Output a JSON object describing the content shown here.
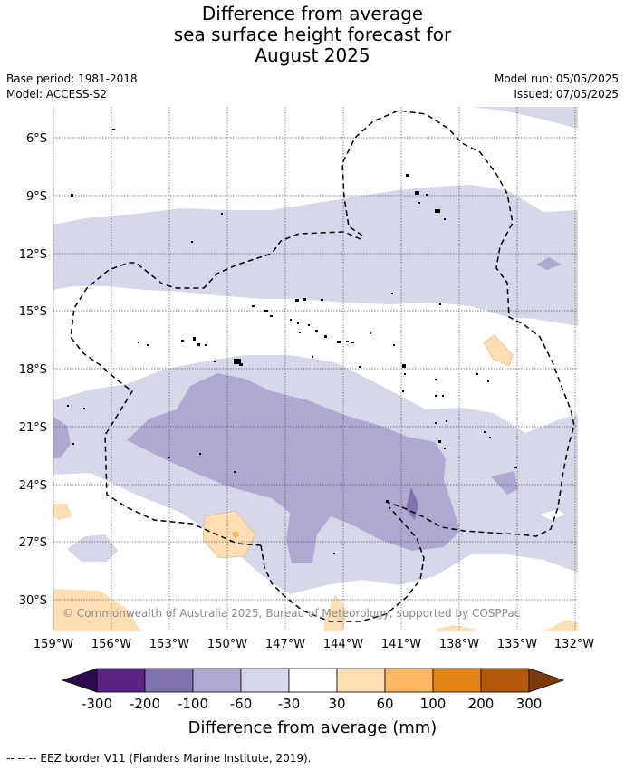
{
  "title": {
    "line1": "Difference from average",
    "line2": "sea surface height forecast for",
    "line3": "August 2025"
  },
  "meta": {
    "base_period": "Base period: 1981-2018",
    "model": "Model: ACCESS-S2",
    "model_run": "Model run: 05/05/2025",
    "issued": "Issued: 07/05/2025"
  },
  "map": {
    "lat_labels": [
      "6°S",
      "9°S",
      "12°S",
      "15°S",
      "18°S",
      "21°S",
      "24°S",
      "27°S",
      "30°S"
    ],
    "lon_labels": [
      "159°W",
      "156°W",
      "153°W",
      "150°W",
      "147°W",
      "144°W",
      "141°W",
      "138°W",
      "135°W",
      "132°W"
    ],
    "copyright": "© Commonwealth of Australia 2025, Bureau of Meteorology, supported by COSPPac"
  },
  "colorbar": {
    "ticks": [
      "-300",
      "-200",
      "-100",
      "-60",
      "-30",
      "30",
      "60",
      "100",
      "200",
      "300"
    ],
    "colors": [
      "#5b2384",
      "#8073ad",
      "#afa9d1",
      "#d7d7ea",
      "#ffffff",
      "#fedeb2",
      "#fbb761",
      "#e28316",
      "#b35809"
    ],
    "end_low_color": "#2d0a4d",
    "end_high_color": "#7f3b07",
    "label": "Difference from average (mm)"
  },
  "footnote": "--  --  -- EEZ border V11 (Flanders Marine Institute, 2019)."
}
